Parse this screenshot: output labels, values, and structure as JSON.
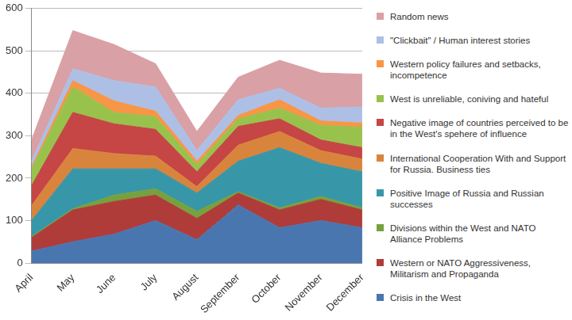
{
  "chart_data": {
    "type": "area",
    "stacked": true,
    "grid": true,
    "legend": "right",
    "categories": [
      "April",
      "May",
      "June",
      "July",
      "August",
      "September",
      "October",
      "November",
      "December"
    ],
    "ylim": [
      0,
      600
    ],
    "yticks": [
      0,
      100,
      200,
      300,
      400,
      500,
      600
    ],
    "series": [
      {
        "name": "Crisis in the West",
        "color": "#4a76b0",
        "values": [
          28,
          50,
          68,
          100,
          55,
          137,
          83,
          100,
          83
        ]
      },
      {
        "name": "Western or NATO Aggressiveness, Militarism and Propaganda",
        "color": "#b03c3a",
        "values": [
          32,
          75,
          77,
          60,
          50,
          28,
          42,
          50,
          42
        ]
      },
      {
        "name": "Divisions within the West and NATO Alliance Problems",
        "color": "#77a13e",
        "values": [
          2,
          3,
          15,
          15,
          17,
          3,
          5,
          7,
          5
        ]
      },
      {
        "name": "Positive Image of Russia and Russian successes",
        "color": "#3797a8",
        "values": [
          38,
          94,
          62,
          47,
          43,
          72,
          142,
          78,
          85
        ]
      },
      {
        "name": "International Cooperation With and Support for Russia. Business ties",
        "color": "#d9843c",
        "values": [
          35,
          48,
          36,
          30,
          15,
          38,
          38,
          30,
          30
        ]
      },
      {
        "name": "Negative image of countries perceived to be in the West's spehere of influence",
        "color": "#c64545",
        "values": [
          47,
          85,
          70,
          63,
          35,
          44,
          30,
          25,
          27
        ]
      },
      {
        "name": "West is unreliable, coniving and hateful",
        "color": "#99c24d",
        "values": [
          40,
          60,
          27,
          30,
          17,
          18,
          25,
          35,
          48
        ]
      },
      {
        "name": "Western policy failures and setbacks, incompetence",
        "color": "#f79646",
        "values": [
          4,
          15,
          27,
          13,
          8,
          8,
          20,
          10,
          10
        ]
      },
      {
        "name": "\"Clickbait\" / Human interest stories",
        "color": "#aebfe6",
        "values": [
          14,
          28,
          48,
          57,
          25,
          37,
          27,
          30,
          38
        ]
      },
      {
        "name": "Random news",
        "color": "#d9a0a6",
        "values": [
          50,
          90,
          85,
          55,
          45,
          53,
          66,
          83,
          77
        ]
      }
    ]
  }
}
